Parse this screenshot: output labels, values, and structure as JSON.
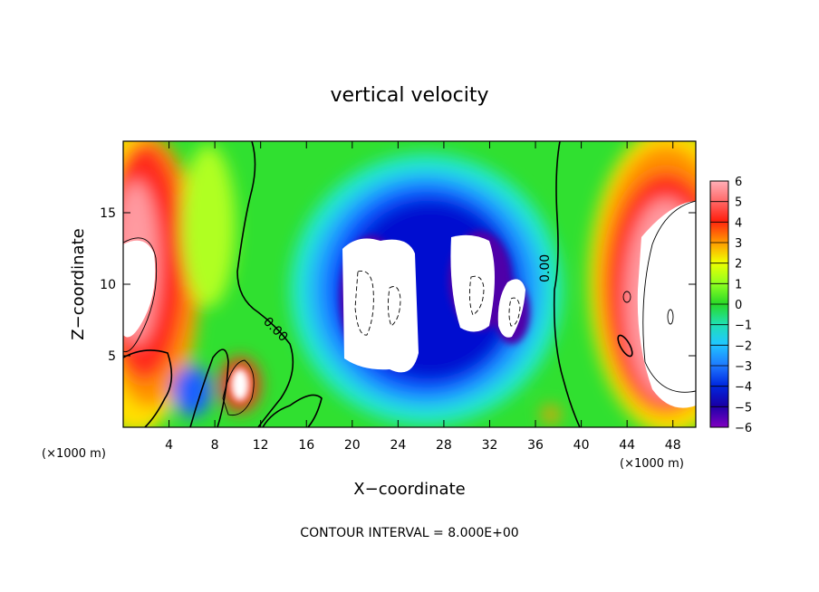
{
  "chart_data": {
    "type": "heatmap",
    "title": "vertical velocity",
    "xlabel": "X−coordinate",
    "ylabel": "Z−coordinate",
    "x_unit_left": "(×1000 m)",
    "x_unit_right": "(×1000 m)",
    "xlim": [
      0,
      50
    ],
    "ylim": [
      0,
      20
    ],
    "x_ticks": [
      4,
      8,
      12,
      16,
      20,
      24,
      28,
      32,
      36,
      40,
      44,
      48
    ],
    "y_ticks": [
      5,
      10,
      15
    ],
    "colorbar": {
      "ticks": [
        "6",
        "5",
        "4",
        "3",
        "2",
        "1",
        "0",
        "−1",
        "−2",
        "−3",
        "−4",
        "−5",
        "−6"
      ],
      "range": [
        -6,
        6
      ],
      "colors": {
        "above_max": "#ffffff",
        "pos_high": "#ff9aa0",
        "pos": "#ff2a1a",
        "mid_pos": "#ff9a00",
        "low_pos": "#e8ff00",
        "zero": "#30e030",
        "neg_low": "#20e8d0",
        "neg": "#1e90ff",
        "neg_high": "#0010d0",
        "below_min": "#7a00b8"
      }
    },
    "contour_labels": [
      "0.00",
      "0.00",
      "0.00"
    ],
    "footer": "CONTOUR INTERVAL = 8.000E+00"
  }
}
